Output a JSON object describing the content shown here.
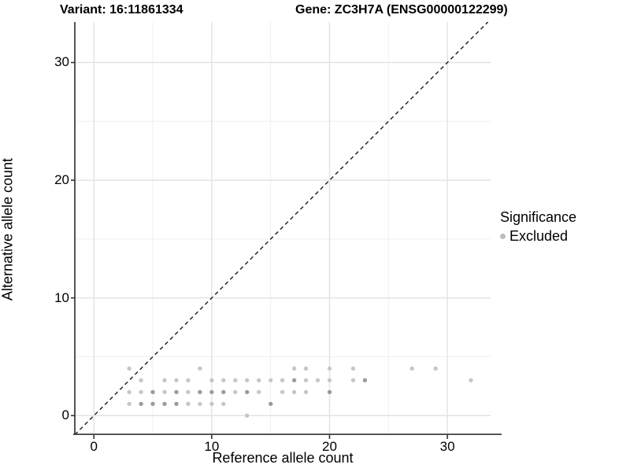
{
  "titles": {
    "variant": "Variant: 16:11861334",
    "gene": "Gene: ZC3H7A (ENSG00000122299)"
  },
  "legend": {
    "title": "Significance",
    "items": [
      {
        "label": "Excluded",
        "color": "#bdbdbd"
      }
    ]
  },
  "colors": {
    "point_light": "#c7c7c7",
    "point_dark": "#9b9b9b",
    "axis_line": "#404040",
    "tick": "#333333",
    "grid_major": "#e2e2e2",
    "grid_minor": "#f0f0f0",
    "identity_line": "#1a1a1a",
    "background": "#ffffff"
  },
  "chart_data": {
    "type": "scatter",
    "title": "Variant: 16:11861334 | Gene: ZC3H7A (ENSG00000122299)",
    "xlabel": "Reference allele count",
    "ylabel": "Alternative allele count",
    "xlim": [
      -1.62,
      33.67
    ],
    "ylim": [
      -1.65,
      33.44
    ],
    "x_ticks": [
      0,
      10,
      20,
      30
    ],
    "y_ticks": [
      0,
      10,
      20,
      30
    ],
    "x_minor": [
      5,
      15,
      25
    ],
    "y_minor": [
      5,
      15,
      25
    ],
    "grid": true,
    "legend_position": "right",
    "identity_line": {
      "equation": "y = x",
      "style": "dashed"
    },
    "point_note": "points are [ref_count, alt_count, overplotted_darker_flag]; all points belong to series Excluded",
    "series": [
      {
        "name": "Excluded",
        "points": [
          [
            13,
            0,
            0
          ],
          [
            3,
            1,
            0
          ],
          [
            4,
            1,
            1
          ],
          [
            5,
            1,
            1
          ],
          [
            6,
            1,
            1
          ],
          [
            7,
            1,
            1
          ],
          [
            8,
            1,
            0
          ],
          [
            9,
            1,
            0
          ],
          [
            10,
            1,
            0
          ],
          [
            11,
            1,
            0
          ],
          [
            15,
            1,
            1
          ],
          [
            3,
            2,
            0
          ],
          [
            4,
            2,
            0
          ],
          [
            5,
            2,
            1
          ],
          [
            6,
            2,
            0
          ],
          [
            7,
            2,
            1
          ],
          [
            8,
            2,
            0
          ],
          [
            9,
            2,
            1
          ],
          [
            10,
            2,
            1
          ],
          [
            11,
            2,
            1
          ],
          [
            12,
            2,
            0
          ],
          [
            13,
            2,
            1
          ],
          [
            14,
            2,
            0
          ],
          [
            16,
            2,
            0
          ],
          [
            17,
            2,
            0
          ],
          [
            18,
            2,
            0
          ],
          [
            20,
            2,
            1
          ],
          [
            4,
            3,
            0
          ],
          [
            6,
            3,
            0
          ],
          [
            7,
            3,
            0
          ],
          [
            8,
            3,
            0
          ],
          [
            10,
            3,
            0
          ],
          [
            11,
            3,
            0
          ],
          [
            12,
            3,
            0
          ],
          [
            13,
            3,
            0
          ],
          [
            14,
            3,
            0
          ],
          [
            15,
            3,
            0
          ],
          [
            16,
            3,
            0
          ],
          [
            17,
            3,
            1
          ],
          [
            18,
            3,
            0
          ],
          [
            19,
            3,
            0
          ],
          [
            20,
            3,
            0
          ],
          [
            22,
            3,
            0
          ],
          [
            23,
            3,
            1
          ],
          [
            32,
            3,
            0
          ],
          [
            3,
            4,
            0
          ],
          [
            9,
            4,
            0
          ],
          [
            17,
            4,
            0
          ],
          [
            18,
            4,
            0
          ],
          [
            20,
            4,
            0
          ],
          [
            22,
            4,
            0
          ],
          [
            27,
            4,
            0
          ],
          [
            29,
            4,
            0
          ]
        ]
      }
    ]
  }
}
